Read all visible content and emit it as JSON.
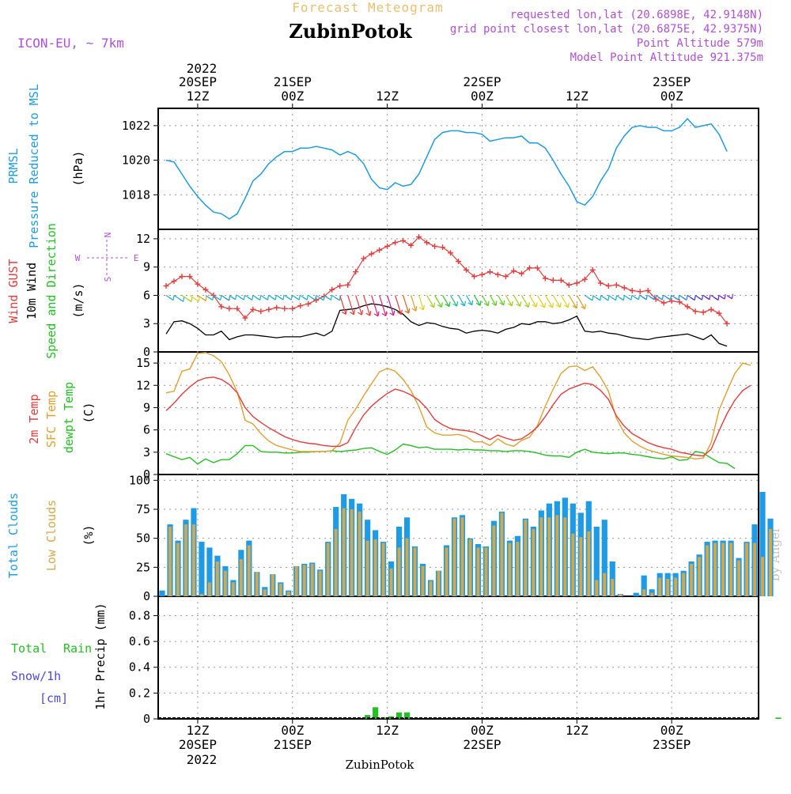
{
  "header": {
    "subtitle": "Forecast Meteogram",
    "location": "ZubinPotok",
    "model": "ICON-EU, ~ 7km",
    "requested": "requested lon,lat (20.6898E, 42.9148N)",
    "closest": "grid point closest lon,lat (20.6875E, 42.9375N)",
    "point_alt": "Point Altitude 579m",
    "model_alt": "Model Point Altitude 921.375m",
    "footer": "ZubinPotok",
    "watermark": "by Angel"
  },
  "time_axis": {
    "top_year": "2022",
    "bottom_year": "2022",
    "ticks": [
      {
        "h": 12,
        "top": [
          "20SEP",
          "12Z"
        ],
        "bottom": [
          "12Z",
          "20SEP"
        ]
      },
      {
        "h": 24,
        "top": [
          "21SEP",
          "00Z"
        ],
        "bottom": [
          "00Z",
          "21SEP"
        ]
      },
      {
        "h": 36,
        "top": [
          "",
          "12Z"
        ],
        "bottom": [
          "12Z",
          ""
        ]
      },
      {
        "h": 48,
        "top": [
          "22SEP",
          "00Z"
        ],
        "bottom": [
          "00Z",
          "22SEP"
        ]
      },
      {
        "h": 60,
        "top": [
          "",
          "12Z"
        ],
        "bottom": [
          "12Z",
          ""
        ]
      },
      {
        "h": 72,
        "top": [
          "23SEP",
          "00Z"
        ],
        "bottom": [
          "00Z",
          "23SEP"
        ]
      }
    ],
    "x_range_hours": [
      7,
      83
    ]
  },
  "colors": {
    "pressure": "#1e9be6",
    "gust": "#e53c3c",
    "wind": "#000000",
    "t2m": "#e53c3c",
    "sfc": "#e0a030",
    "dew": "#22c022",
    "total_cloud": "#1e9be6",
    "low_cloud": "#d4a84a",
    "rain": "#22c022",
    "snow": "#4a4ae0",
    "meta": "#b050d8",
    "header_sub": "#e8c070",
    "axis": "#000000",
    "grid": "#999999"
  },
  "panels": {
    "pressure": {
      "labels": [
        "PRMSL",
        "Pressure Reduced to MSL"
      ],
      "unit": "(hPa)",
      "ticks": [
        "1018",
        "1020",
        "1022"
      ]
    },
    "wind": {
      "labels": [
        "Wind GUST",
        "10m Wind",
        "Speed and Direction"
      ],
      "unit": "(m/s)",
      "ticks": [
        "0",
        "3",
        "6",
        "9",
        "12"
      ],
      "compass": {
        "n": "N",
        "s": "S",
        "w": "W",
        "e": "E"
      }
    },
    "temp": {
      "labels": [
        "2m Temp",
        "SFC Temp",
        "dewpt Temp"
      ],
      "unit": "(C)",
      "ticks": [
        "0",
        "3",
        "6",
        "9",
        "12",
        "15"
      ]
    },
    "cloud": {
      "labels": [
        "Total Clouds",
        "Low Clouds"
      ],
      "unit": "(%)",
      "ticks": [
        "0",
        "25",
        "50",
        "75",
        "100"
      ]
    },
    "precip": {
      "labels": [
        "Total",
        "Rain",
        "Snow/1h",
        "[cm]"
      ],
      "unit": "1hr Precip (mm)",
      "ticks": [
        "0",
        "0.2",
        "0.4",
        "0.6",
        "0.8"
      ]
    }
  },
  "chart_data": [
    {
      "type": "line",
      "title": "PRMSL Pressure Reduced to MSL",
      "ylabel": "(hPa)",
      "ylim": [
        1016,
        1023
      ],
      "x_start_hour": 8,
      "series": [
        {
          "name": "PRMSL",
          "values": [
            1020,
            1019.9,
            1019.2,
            1018.5,
            1017.9,
            1017.4,
            1017.0,
            1016.9,
            1016.6,
            1016.9,
            1017.8,
            1018.8,
            1019.2,
            1019.8,
            1020.2,
            1020.5,
            1020.5,
            1020.7,
            1020.7,
            1020.8,
            1020.7,
            1020.6,
            1020.3,
            1020.5,
            1020.3,
            1019.8,
            1018.9,
            1018.4,
            1018.3,
            1018.7,
            1018.5,
            1018.6,
            1019.2,
            1020.2,
            1021.2,
            1021.6,
            1021.7,
            1021.7,
            1021.6,
            1021.6,
            1021.5,
            1021.1,
            1021.2,
            1021.3,
            1021.3,
            1021.4,
            1021.0,
            1021.0,
            1020.7,
            1020.0,
            1019.2,
            1018.5,
            1017.6,
            1017.4,
            1017.9,
            1018.8,
            1019.5,
            1020.7,
            1021.4,
            1021.9,
            1022.0,
            1021.9,
            1021.9,
            1021.7,
            1021.7,
            1021.9,
            1022.4,
            1021.9,
            1022.0,
            1022.1,
            1021.5,
            1020.5
          ]
        }
      ]
    },
    {
      "type": "line",
      "title": "Wind GUST / 10m Wind Speed and Direction",
      "ylabel": "(m/s)",
      "ylim": [
        0,
        13
      ],
      "x_start_hour": 8,
      "series": [
        {
          "name": "Wind GUST",
          "values": [
            7,
            7.5,
            8,
            8,
            7.2,
            6.6,
            6,
            4.8,
            4.6,
            4.6,
            3.6,
            4.5,
            4.3,
            4.5,
            4.7,
            4.6,
            4.6,
            4.9,
            5.1,
            5.5,
            5.9,
            6.6,
            7,
            7.1,
            8.5,
            9.9,
            10.4,
            10.8,
            11.2,
            11.6,
            11.8,
            11.3,
            12.2,
            11.6,
            11.2,
            11.1,
            10.5,
            9.6,
            8.7,
            8,
            8.2,
            8.5,
            8.2,
            8.0,
            8.6,
            8.3,
            8.9,
            8.9,
            7.8,
            7.6,
            7.6,
            7.1,
            7.3,
            7.7,
            8.7,
            7.3,
            7.0,
            7.1,
            6.8,
            6.5,
            6.4,
            6.5,
            5.6,
            5.2,
            5.4,
            5.3,
            4.8,
            4.3,
            4.2,
            4.5,
            4.1,
            3
          ]
        },
        {
          "name": "10m Wind",
          "values": [
            1.9,
            3.2,
            3.3,
            3.0,
            2.5,
            1.8,
            1.8,
            2.2,
            1.3,
            1.6,
            1.8,
            1.8,
            1.7,
            1.6,
            1.5,
            1.6,
            1.6,
            1.6,
            1.8,
            2.0,
            1.7,
            2.2,
            4.4,
            4.5,
            4.6,
            4.9,
            5.1,
            5.0,
            4.8,
            4.5,
            4.0,
            3.2,
            2.8,
            3.1,
            3.0,
            2.7,
            2.5,
            2.4,
            2.0,
            2.2,
            2.3,
            2.2,
            2.0,
            2.4,
            2.6,
            3.0,
            2.9,
            3.2,
            3.2,
            3.0,
            3.1,
            3.4,
            3.8,
            2.2,
            2.1,
            2.2,
            2.0,
            1.9,
            1.7,
            1.5,
            1.4,
            1.3,
            1.5,
            1.6,
            1.7,
            1.8,
            1.9,
            1.6,
            1.3,
            1.8,
            0.9,
            0.6
          ]
        }
      ]
    },
    {
      "type": "line",
      "title": "2m Temp / SFC Temp / dewpt Temp",
      "ylabel": "(C)",
      "ylim": [
        0,
        16.5
      ],
      "x_start_hour": 8,
      "series": [
        {
          "name": "2m Temp",
          "values": [
            8.6,
            9.6,
            10.8,
            11.8,
            12.6,
            13.0,
            13.1,
            12.8,
            12.1,
            11.0,
            9.0,
            7.8,
            7.0,
            6.3,
            5.7,
            5.1,
            4.7,
            4.4,
            4.2,
            4.1,
            3.9,
            3.8,
            3.8,
            4.3,
            6.3,
            8.0,
            9.2,
            10.1,
            10.9,
            11.5,
            11.2,
            10.7,
            10.0,
            8.9,
            7.4,
            6.7,
            6.2,
            6.0,
            5.9,
            5.7,
            5.2,
            4.7,
            5.3,
            4.9,
            4.6,
            4.8,
            5.5,
            6.4,
            7.8,
            9.4,
            10.8,
            11.5,
            11.9,
            12.3,
            12.1,
            11.3,
            10.1,
            7.9,
            6.5,
            5.5,
            4.9,
            4.3,
            3.9,
            3.6,
            3.4,
            3.0,
            2.8,
            2.6,
            2.5,
            3.4,
            5.9,
            8.2,
            10.0,
            11.3,
            12.0
          ]
        },
        {
          "name": "SFC Temp",
          "values": [
            11,
            11.2,
            13.9,
            14.2,
            16.3,
            16.4,
            16.0,
            15.2,
            13.4,
            11.1,
            7.3,
            6.8,
            5.5,
            4.5,
            3.9,
            3.6,
            3.3,
            3.1,
            3.1,
            3.1,
            3.1,
            3.2,
            4.2,
            7.3,
            8.8,
            10.6,
            12.2,
            13.8,
            14.3,
            13.9,
            12.8,
            11.3,
            9.1,
            6.4,
            5.6,
            5.3,
            5.3,
            5.4,
            5.1,
            4.4,
            4.4,
            3.9,
            4.8,
            4.1,
            3.8,
            4.6,
            5.0,
            6.6,
            9.2,
            11.5,
            13.6,
            14.5,
            14.6,
            14.0,
            14.5,
            13.1,
            11.2,
            7.6,
            5.6,
            4.5,
            3.8,
            3.3,
            3.0,
            2.7,
            2.5,
            2.4,
            2.3,
            2.1,
            2.2,
            4.3,
            8.7,
            11.2,
            13.6,
            15.0,
            14.7
          ]
        },
        {
          "name": "dewpt Temp",
          "values": [
            2.8,
            2.4,
            2.0,
            2.3,
            1.4,
            2.1,
            1.6,
            2.0,
            2.0,
            2.8,
            3.9,
            3.9,
            3.1,
            3.0,
            3.0,
            2.9,
            2.9,
            3.0,
            3.0,
            3.1,
            3.1,
            3.2,
            3.1,
            3.2,
            3.3,
            3.5,
            3.6,
            3.1,
            2.7,
            3.3,
            4.1,
            3.9,
            3.6,
            3.7,
            3.4,
            3.4,
            3.4,
            3.3,
            3.4,
            3.3,
            3.3,
            3.2,
            3.2,
            3.1,
            3.2,
            3.2,
            3.1,
            2.9,
            2.6,
            2.5,
            2.5,
            2.3,
            3.0,
            3.4,
            3.0,
            2.9,
            2.8,
            2.9,
            2.9,
            2.7,
            2.6,
            2.4,
            2.2,
            2.1,
            2.4,
            1.9,
            2.0,
            3.1,
            2.9,
            2.2,
            1.6,
            1.5,
            0.8
          ]
        }
      ]
    },
    {
      "type": "bar",
      "title": "Total Clouds / Low Clouds",
      "ylabel": "(%)",
      "ylim": [
        0,
        100
      ],
      "x_start_hour": 7,
      "series": [
        {
          "name": "Total Clouds",
          "values": [
            5,
            62,
            48,
            66,
            76,
            47,
            42,
            35,
            26,
            14,
            40,
            48,
            21,
            8,
            19,
            12,
            5,
            26,
            28,
            29,
            23,
            47,
            77,
            88,
            84,
            80,
            66,
            57,
            47,
            30,
            60,
            68,
            43,
            28,
            14,
            22,
            44,
            68,
            70,
            50,
            45,
            43,
            65,
            73,
            48,
            52,
            67,
            60,
            74,
            80,
            82,
            85,
            80,
            72,
            82,
            60,
            66,
            30,
            2,
            0,
            3,
            18,
            6,
            20,
            20,
            20,
            22,
            30,
            36,
            47,
            48,
            48,
            48,
            33,
            47,
            62,
            90,
            67
          ]
        },
        {
          "name": "Low Clouds",
          "values": [
            0,
            60,
            46,
            62,
            62,
            2,
            12,
            30,
            22,
            12,
            32,
            44,
            21,
            6,
            19,
            11,
            4,
            26,
            27,
            28,
            22,
            46,
            58,
            76,
            75,
            73,
            48,
            49,
            46,
            24,
            42,
            50,
            42,
            26,
            13,
            22,
            42,
            67,
            68,
            49,
            42,
            42,
            61,
            72,
            46,
            47,
            66,
            58,
            68,
            68,
            70,
            68,
            54,
            51,
            56,
            14,
            20,
            15,
            2,
            0,
            0,
            6,
            3,
            16,
            15,
            16,
            20,
            28,
            34,
            44,
            46,
            46,
            46,
            31,
            46,
            46,
            34,
            58
          ]
        }
      ]
    },
    {
      "type": "bar",
      "title": "1hr Precip (mm)",
      "ylabel": "1hr Precip (mm)",
      "ylim": [
        0,
        0.95
      ],
      "x_start_hour": 7,
      "series": [
        {
          "name": "Total Rain",
          "values": [
            0,
            0,
            0,
            0,
            0,
            0,
            0,
            0,
            0,
            0,
            0,
            0,
            0,
            0,
            0,
            0,
            0,
            0,
            0,
            0,
            0,
            0,
            0,
            0,
            0,
            0,
            0.03,
            0.09,
            0.01,
            0.02,
            0.05,
            0.05,
            0,
            0,
            0,
            0,
            0,
            0,
            0,
            0,
            0,
            0,
            0,
            0,
            0,
            0,
            0,
            0,
            0,
            0,
            0,
            0,
            0,
            0,
            0,
            0,
            0,
            0,
            0,
            0,
            0,
            0,
            0,
            0,
            0,
            0,
            0,
            0,
            0,
            0,
            0,
            0,
            0,
            0,
            0,
            0,
            0,
            0,
            0.01
          ]
        }
      ]
    }
  ]
}
